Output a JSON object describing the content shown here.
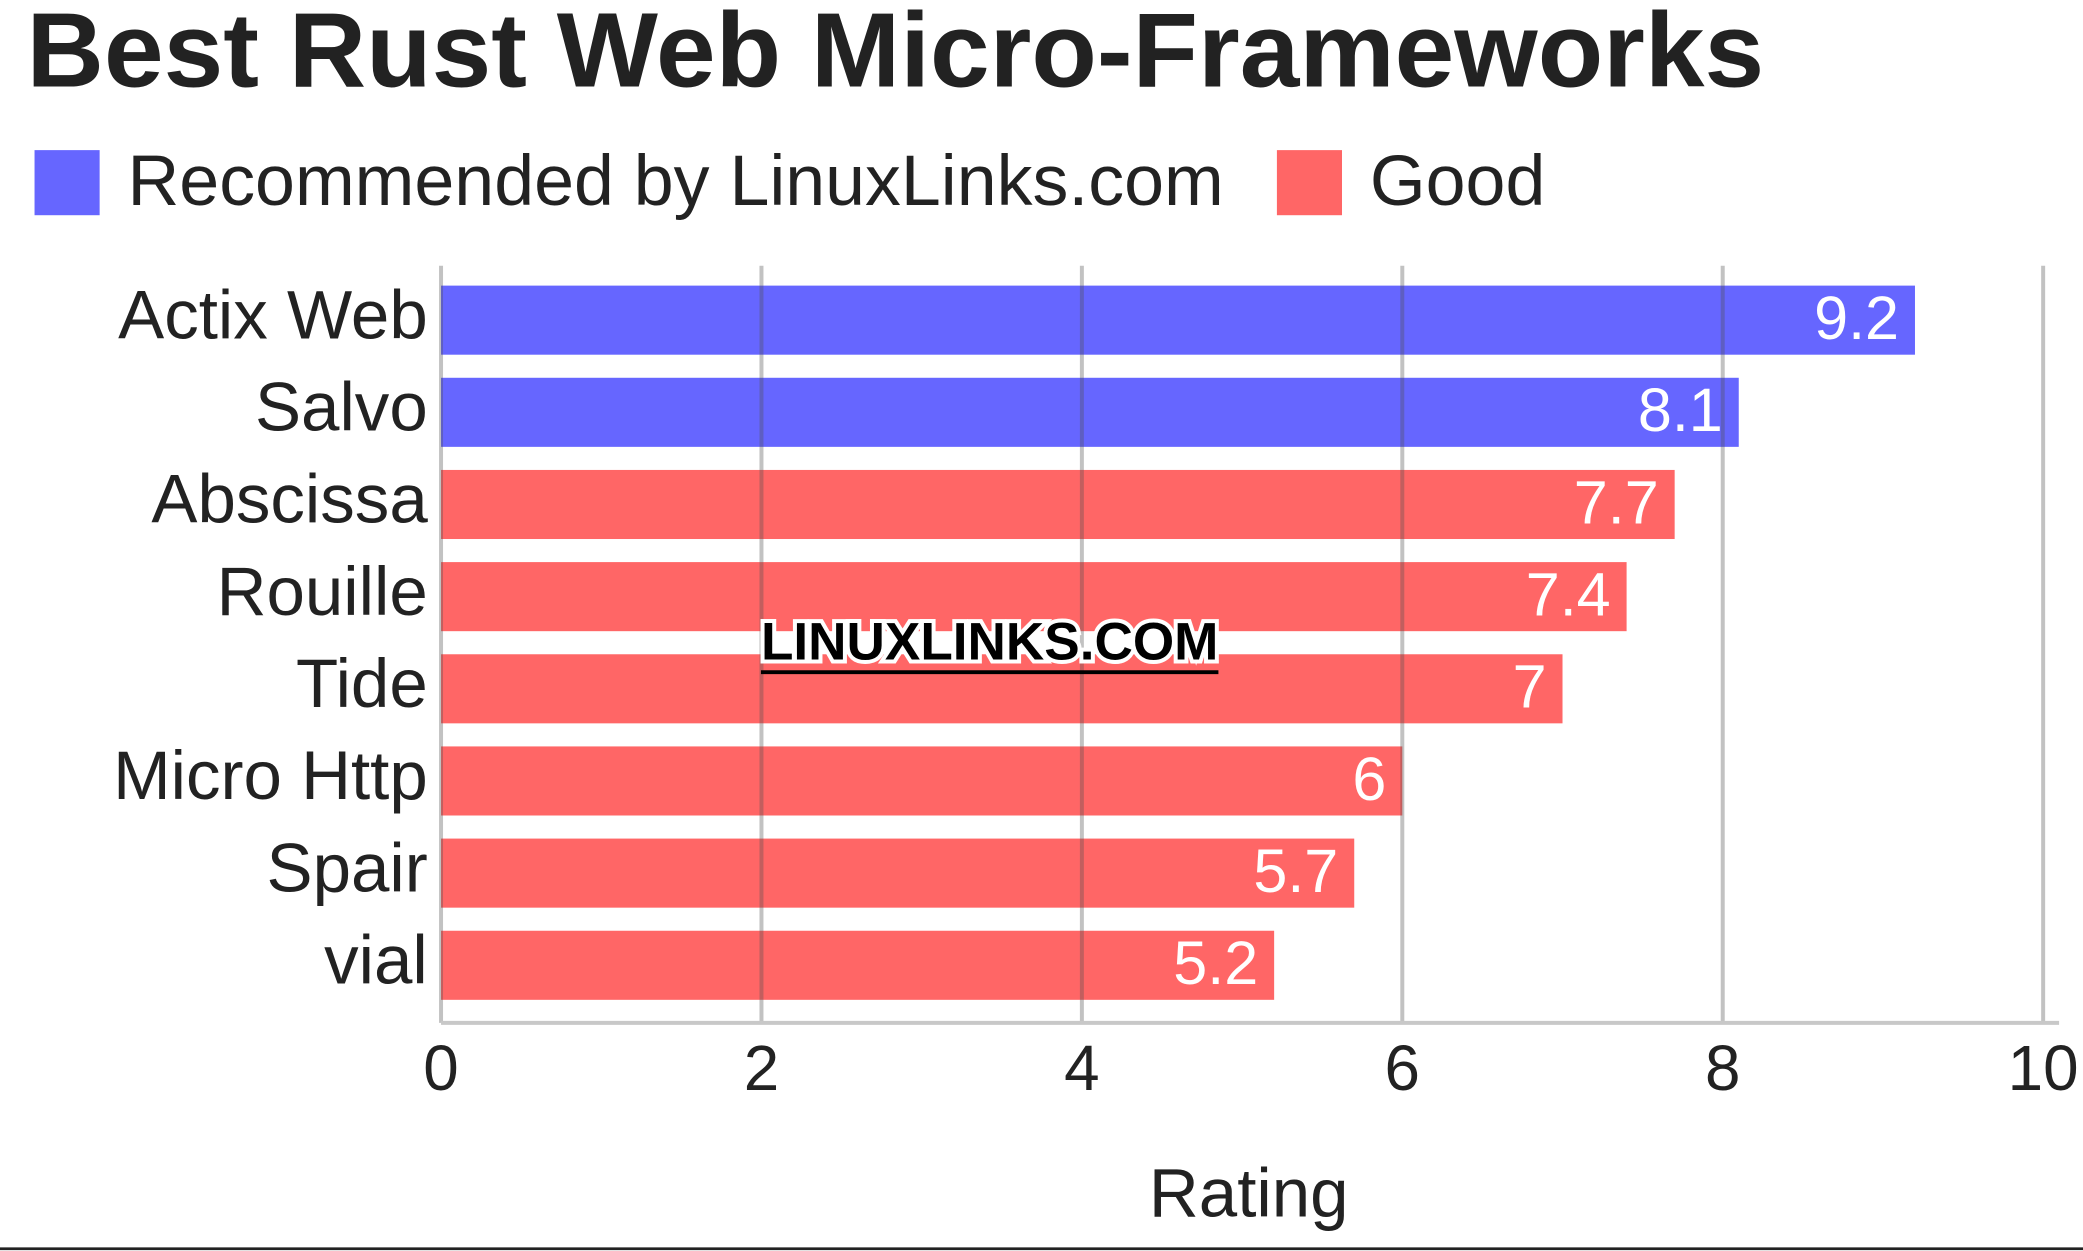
{
  "chart_data": {
    "type": "barh",
    "title": "Best Rust Web Micro-Frameworks",
    "watermark": "LINUXLINKS.COM",
    "categories": [
      "Actix Web",
      "Salvo",
      "Abscissa",
      "Rouille",
      "Tide",
      "Micro Http",
      "Spair",
      "vial"
    ],
    "series": [
      {
        "name": "Recommended by LinuxLinks.com",
        "color": "#6666ff",
        "values": [
          9.2,
          8.1,
          null,
          null,
          null,
          null,
          null,
          null
        ]
      },
      {
        "name": "Good",
        "color": "#ff6666",
        "values": [
          null,
          null,
          7.7,
          7.4,
          7,
          6,
          5.7,
          5.2
        ]
      }
    ],
    "xlabel": "Rating",
    "xlim": [
      0,
      10
    ],
    "xticks": [
      0,
      2,
      4,
      6,
      8,
      10
    ],
    "grid": true
  }
}
